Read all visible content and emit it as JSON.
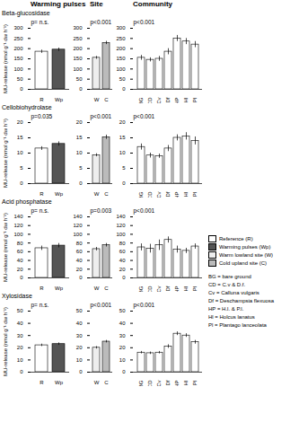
{
  "column_titles": [
    "Warming pulses",
    "Site",
    "Community"
  ],
  "legend_entries": [
    {
      "name": "Reference (R)",
      "color": "#ffffff"
    },
    {
      "name": "Warming pulses (Wp)",
      "color": "#555555"
    },
    {
      "name": "Warm lowland site (W)",
      "color": "#eeeeee"
    },
    {
      "name": "Cold upland site (C)",
      "color": "#bbbbbb"
    }
  ],
  "abbreviations": [
    "BG = bare ground",
    "CD = C.v & D.f.",
    "Cv = Calluna vulgaris",
    "Df = Deschampsia flexuosa",
    "HP = H.l. & P.l.",
    "Hl = Holcus lanatus",
    "Pl = Plantago lanceolata"
  ],
  "chart_data": [
    {
      "type": "bar",
      "title": "Beta-glucosidase",
      "y_label": "MU-release (nmol g⁻¹ dw h⁻¹)",
      "annotations": [
        "p= n.s."
      ],
      "categories": [
        "R",
        "Wp"
      ],
      "values": [
        185,
        195
      ],
      "errors": [
        8,
        8
      ],
      "colors": [
        "#ffffff",
        "#555555"
      ],
      "ylim": [
        0,
        300
      ],
      "yticks": [
        0,
        50,
        100,
        150,
        200,
        250,
        300
      ]
    },
    {
      "type": "bar",
      "annotations": [
        "p<0.001"
      ],
      "categories": [
        "W",
        "C"
      ],
      "values": [
        155,
        228
      ],
      "errors": [
        7,
        8
      ],
      "colors": [
        "#eeeeee",
        "#bbbbbb"
      ],
      "ylim": [
        0,
        300
      ],
      "yticks": [
        0,
        50,
        100,
        150,
        200,
        250,
        300
      ]
    },
    {
      "type": "bar",
      "annotations": [
        "p<0.001"
      ],
      "categories": [
        "BG",
        "CD",
        "Cv",
        "Df",
        "HP",
        "HI",
        "PI"
      ],
      "values": [
        155,
        145,
        150,
        185,
        250,
        235,
        220
      ],
      "errors": [
        12,
        10,
        12,
        15,
        15,
        15,
        15
      ],
      "colors": [
        "#ffffff",
        "#ffffff",
        "#ffffff",
        "#ffffff",
        "#ffffff",
        "#ffffff",
        "#ffffff"
      ],
      "ylim": [
        0,
        300
      ],
      "yticks": [
        0,
        50,
        100,
        150,
        200,
        250,
        300
      ]
    },
    {
      "type": "bar",
      "title": "Cellobiohydrolase",
      "y_label": "MU-release (nmol g⁻¹ dw h⁻¹)",
      "annotations": [
        "p=0.035"
      ],
      "categories": [
        "R",
        "Wp"
      ],
      "values": [
        11.5,
        13
      ],
      "errors": [
        0.6,
        0.7
      ],
      "colors": [
        "#ffffff",
        "#555555"
      ],
      "ylim": [
        0,
        20
      ],
      "yticks": [
        0,
        5,
        10,
        15,
        20
      ]
    },
    {
      "type": "bar",
      "annotations": [
        "p<0.001"
      ],
      "categories": [
        "W",
        "C"
      ],
      "values": [
        9.3,
        15.2
      ],
      "errors": [
        0.5,
        0.7
      ],
      "colors": [
        "#eeeeee",
        "#bbbbbb"
      ],
      "ylim": [
        0,
        20
      ],
      "yticks": [
        0,
        5,
        10,
        15,
        20
      ]
    },
    {
      "type": "bar",
      "annotations": [
        "p<0.001"
      ],
      "categories": [
        "BG",
        "CD",
        "Cv",
        "Df",
        "HP",
        "HI",
        "PI"
      ],
      "values": [
        12,
        9.2,
        9,
        11.5,
        15,
        15.5,
        14
      ],
      "errors": [
        1,
        0.8,
        0.7,
        1,
        1,
        1.2,
        1.3
      ],
      "colors": [
        "#ffffff",
        "#ffffff",
        "#ffffff",
        "#ffffff",
        "#ffffff",
        "#ffffff",
        "#ffffff"
      ],
      "ylim": [
        0,
        20
      ],
      "yticks": [
        0,
        5,
        10,
        15,
        20
      ]
    },
    {
      "type": "bar",
      "title": "Acid phosphatase",
      "y_label": "MU-release (nmol g⁻¹ dw h⁻¹)",
      "annotations": [
        "p= n.s."
      ],
      "categories": [
        "R",
        "Wp"
      ],
      "values": [
        68,
        74
      ],
      "errors": [
        5,
        5
      ],
      "colors": [
        "#ffffff",
        "#555555"
      ],
      "ylim": [
        0,
        140
      ],
      "yticks": [
        0,
        20,
        40,
        60,
        80,
        100,
        120,
        140
      ]
    },
    {
      "type": "bar",
      "annotations": [
        "p=0.003"
      ],
      "categories": [
        "W",
        "C"
      ],
      "values": [
        66,
        75
      ],
      "errors": [
        4,
        4
      ],
      "colors": [
        "#eeeeee",
        "#bbbbbb"
      ],
      "ylim": [
        0,
        140
      ],
      "yticks": [
        0,
        20,
        40,
        60,
        80,
        100,
        120,
        140
      ]
    },
    {
      "type": "bar",
      "annotations": [
        "p<0.001"
      ],
      "categories": [
        "BG",
        "CD",
        "Cv",
        "Df",
        "HP",
        "HI",
        "PI"
      ],
      "values": [
        70,
        67,
        75,
        87,
        65,
        62,
        72
      ],
      "errors": [
        8,
        10,
        12,
        7,
        8,
        6,
        6
      ],
      "colors": [
        "#ffffff",
        "#ffffff",
        "#ffffff",
        "#ffffff",
        "#ffffff",
        "#ffffff",
        "#ffffff"
      ],
      "ylim": [
        0,
        140
      ],
      "yticks": [
        0,
        20,
        40,
        60,
        80,
        100,
        120,
        140
      ]
    },
    {
      "type": "bar",
      "title": "Xylosidase",
      "y_label": "MU-release (nmol g⁻¹ dw h⁻¹)",
      "annotations": [
        "p= n.s."
      ],
      "categories": [
        "R",
        "Wp"
      ],
      "values": [
        22,
        23
      ],
      "errors": [
        1,
        1
      ],
      "colors": [
        "#ffffff",
        "#555555"
      ],
      "ylim": [
        0,
        50
      ],
      "yticks": [
        0,
        10,
        20,
        30,
        40,
        50
      ]
    },
    {
      "type": "bar",
      "annotations": [
        "p<0.001"
      ],
      "categories": [
        "W",
        "C"
      ],
      "values": [
        20,
        25
      ],
      "errors": [
        1,
        1
      ],
      "colors": [
        "#eeeeee",
        "#bbbbbb"
      ],
      "ylim": [
        0,
        50
      ],
      "yticks": [
        0,
        10,
        20,
        30,
        40,
        50
      ]
    },
    {
      "type": "bar",
      "annotations": [
        "p<0.001"
      ],
      "categories": [
        "BG",
        "CD",
        "Cv",
        "Df",
        "HP",
        "HI",
        "PI"
      ],
      "values": [
        16,
        15.5,
        16,
        21,
        31.5,
        30,
        24.5
      ],
      "errors": [
        1,
        1,
        1,
        1.5,
        1.5,
        1.5,
        1.5
      ],
      "colors": [
        "#ffffff",
        "#ffffff",
        "#ffffff",
        "#ffffff",
        "#ffffff",
        "#ffffff",
        "#ffffff"
      ],
      "ylim": [
        0,
        50
      ],
      "yticks": [
        0,
        10,
        20,
        30,
        40,
        50
      ]
    }
  ]
}
